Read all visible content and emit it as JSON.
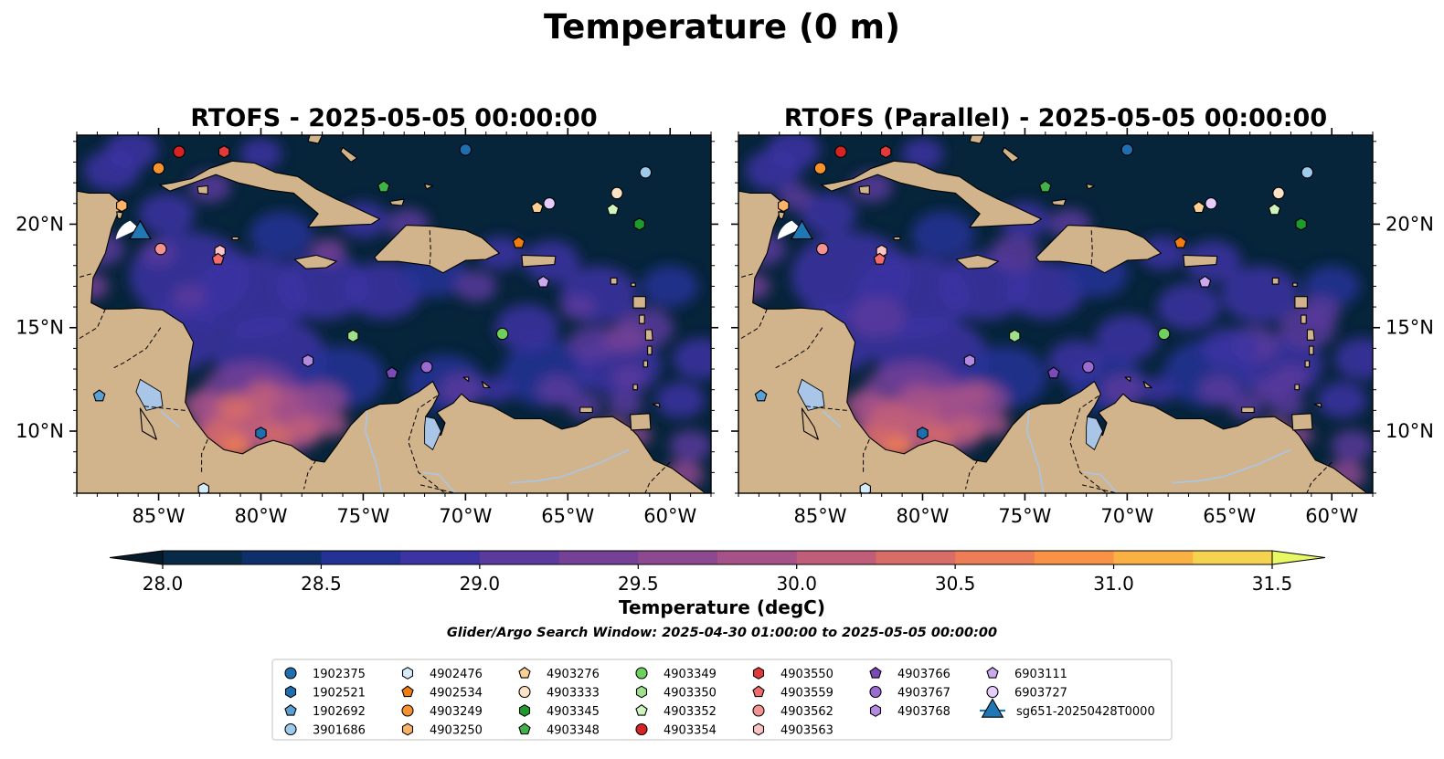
{
  "suptitle": "Temperature (0 m)",
  "panels": [
    {
      "title": "RTOFS - 2025-05-05 00:00:00",
      "model": "RTOFS"
    },
    {
      "title": "RTOFS (Parallel) - 2025-05-05 00:00:00",
      "model": "RTOFS (Parallel)"
    }
  ],
  "map": {
    "lon_range": [
      -89,
      -58
    ],
    "lat_range": [
      7,
      24.3
    ],
    "lon_ticks": [
      "85°W",
      "80°W",
      "75°W",
      "70°W",
      "65°W",
      "60°W"
    ],
    "lon_tick_values": [
      -85,
      -80,
      -75,
      -70,
      -65,
      -60
    ],
    "lat_ticks": [
      "20°N",
      "15°N",
      "10°N"
    ],
    "lat_tick_values": [
      20,
      15,
      10
    ],
    "land_color": "#d2b48c",
    "ocean_base_color": "#06243a"
  },
  "colorbar": {
    "label": "Temperature (degC)",
    "ticks": [
      "28.0",
      "28.5",
      "29.0",
      "29.5",
      "30.0",
      "30.5",
      "31.0",
      "31.5"
    ],
    "tick_values": [
      28.0,
      28.5,
      29.0,
      29.5,
      30.0,
      30.5,
      31.0,
      31.5
    ],
    "range": [
      28.0,
      31.5
    ],
    "levels": 14,
    "colors": [
      "#082a46",
      "#0f2f6b",
      "#243296",
      "#3c34a3",
      "#5a3a9c",
      "#744196",
      "#8d4990",
      "#a65288",
      "#c05e7a",
      "#d86c69",
      "#ec7d56",
      "#f89246",
      "#fbb044",
      "#f5d24f"
    ],
    "under_color": "#061b2c",
    "over_color": "#e8f864",
    "extend": "both"
  },
  "search_window": "Glider/Argo Search Window: 2025-04-30 01:00:00 to 2025-05-05 00:00:00",
  "legend": {
    "columns": [
      [
        {
          "label": "1902375",
          "marker": "circle",
          "color": "#1f6fb0"
        },
        {
          "label": "1902521",
          "marker": "hexagon",
          "color": "#1f6fb0"
        },
        {
          "label": "1902692",
          "marker": "pentagon",
          "color": "#5aa0d2"
        },
        {
          "label": "3901686",
          "marker": "circle",
          "color": "#9dcbec"
        }
      ],
      [
        {
          "label": "4902476",
          "marker": "hexagon",
          "color": "#d6ecfb"
        },
        {
          "label": "4902534",
          "marker": "pentagon",
          "color": "#f07d10"
        },
        {
          "label": "4903249",
          "marker": "circle",
          "color": "#f8922e"
        },
        {
          "label": "4903250",
          "marker": "hexagon",
          "color": "#fbb36a"
        }
      ],
      [
        {
          "label": "4903276",
          "marker": "pentagon",
          "color": "#fccf95"
        },
        {
          "label": "4903333",
          "marker": "circle",
          "color": "#fde3c6"
        },
        {
          "label": "4903345",
          "marker": "hexagon",
          "color": "#1f9a2e"
        },
        {
          "label": "4903348",
          "marker": "pentagon",
          "color": "#3fb34a"
        }
      ],
      [
        {
          "label": "4903349",
          "marker": "circle",
          "color": "#6ed05f"
        },
        {
          "label": "4903350",
          "marker": "hexagon",
          "color": "#9fe08c"
        },
        {
          "label": "4903352",
          "marker": "pentagon",
          "color": "#cdf5bd"
        },
        {
          "label": "4903354",
          "marker": "circle",
          "color": "#d62424"
        }
      ],
      [
        {
          "label": "4903550",
          "marker": "hexagon",
          "color": "#e03a3a"
        },
        {
          "label": "4903559",
          "marker": "pentagon",
          "color": "#f06b6b"
        },
        {
          "label": "4903562",
          "marker": "circle",
          "color": "#f59393"
        },
        {
          "label": "4903563",
          "marker": "hexagon",
          "color": "#fbc3c3"
        }
      ],
      [
        {
          "label": "4903766",
          "marker": "pentagon",
          "color": "#7a4ab8"
        },
        {
          "label": "4903767",
          "marker": "circle",
          "color": "#9a6bd0"
        },
        {
          "label": "4903768",
          "marker": "hexagon",
          "color": "#b48ae0"
        }
      ],
      [
        {
          "label": "6903111",
          "marker": "pentagon",
          "color": "#cba8f0"
        },
        {
          "label": "6903727",
          "marker": "circle",
          "color": "#e6cdfb"
        },
        {
          "label": "sg651-20250428T0000",
          "marker": "triangle",
          "color": "#1f77b4"
        }
      ]
    ]
  },
  "floats": [
    {
      "id": "4903354",
      "lon": -84.0,
      "lat": 23.5
    },
    {
      "id": "4903550",
      "lon": -81.8,
      "lat": 23.5
    },
    {
      "id": "1902375",
      "lon": -70.0,
      "lat": 23.6
    },
    {
      "id": "4903249",
      "lon": -85.0,
      "lat": 22.7
    },
    {
      "id": "3901686",
      "lon": -61.2,
      "lat": 22.5
    },
    {
      "id": "4903348",
      "lon": -74.0,
      "lat": 21.8
    },
    {
      "id": "4903333",
      "lon": -62.6,
      "lat": 21.5
    },
    {
      "id": "6903727",
      "lon": -65.9,
      "lat": 21.0
    },
    {
      "id": "4903276",
      "lon": -66.5,
      "lat": 20.8
    },
    {
      "id": "4903352",
      "lon": -62.8,
      "lat": 20.7
    },
    {
      "id": "4903250",
      "lon": -86.8,
      "lat": 20.9
    },
    {
      "id": "4903345",
      "lon": -61.5,
      "lat": 20.0
    },
    {
      "id": "4902534",
      "lon": -67.4,
      "lat": 19.1
    },
    {
      "id": "4903562",
      "lon": -84.9,
      "lat": 18.8
    },
    {
      "id": "4903563",
      "lon": -82.0,
      "lat": 18.7
    },
    {
      "id": "4903559",
      "lon": -82.1,
      "lat": 18.3
    },
    {
      "id": "6903111",
      "lon": -66.2,
      "lat": 17.2
    },
    {
      "id": "4903350",
      "lon": -75.5,
      "lat": 14.6
    },
    {
      "id": "4903349",
      "lon": -68.2,
      "lat": 14.7
    },
    {
      "id": "4903766",
      "lon": -73.6,
      "lat": 12.8
    },
    {
      "id": "4903768",
      "lon": -77.7,
      "lat": 13.4
    },
    {
      "id": "4903767",
      "lon": -71.9,
      "lat": 13.1
    },
    {
      "id": "1902692",
      "lon": -87.9,
      "lat": 11.7
    },
    {
      "id": "1902521",
      "lon": -80.0,
      "lat": 9.9
    },
    {
      "id": "4902476",
      "lon": -82.8,
      "lat": 7.2
    }
  ],
  "glider": {
    "id": "sg651-20250428T0000",
    "lon": -85.9,
    "lat": 19.7
  }
}
